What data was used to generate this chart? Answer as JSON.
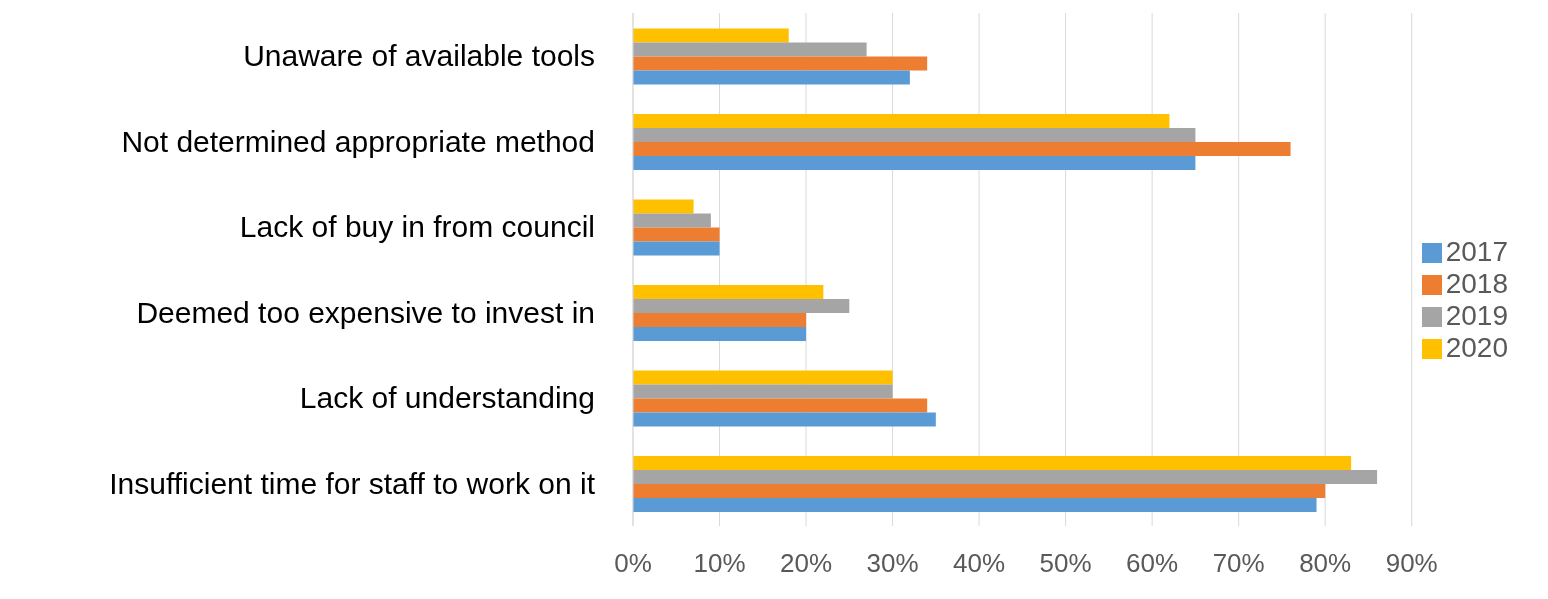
{
  "chart_data": {
    "type": "bar",
    "orientation": "horizontal",
    "categories": [
      "Unaware of available tools",
      "Not determined appropriate method",
      "Lack of buy in from council",
      "Deemed too expensive to invest in",
      "Lack of understanding",
      "Insufficient time for staff to work on it"
    ],
    "series": [
      {
        "name": "2020",
        "color": "#ffc000",
        "values": [
          18,
          62,
          7,
          22,
          30,
          83
        ]
      },
      {
        "name": "2019",
        "color": "#a5a5a5",
        "values": [
          27,
          65,
          9,
          25,
          30,
          86
        ]
      },
      {
        "name": "2018",
        "color": "#ed7d31",
        "values": [
          34,
          76,
          10,
          20,
          34,
          80
        ]
      },
      {
        "name": "2017",
        "color": "#5b9bd5",
        "values": [
          32,
          65,
          10,
          20,
          35,
          79
        ]
      }
    ],
    "xlim": [
      0,
      90
    ],
    "xticks": [
      {
        "value": 0,
        "label": "0%"
      },
      {
        "value": 10,
        "label": "10%"
      },
      {
        "value": 20,
        "label": "20%"
      },
      {
        "value": 30,
        "label": "30%"
      },
      {
        "value": 40,
        "label": "40%"
      },
      {
        "value": 50,
        "label": "50%"
      },
      {
        "value": 60,
        "label": "60%"
      },
      {
        "value": 70,
        "label": "70%"
      },
      {
        "value": 80,
        "label": "80%"
      },
      {
        "value": 90,
        "label": "90%"
      }
    ],
    "grid": "x",
    "legend": "right"
  }
}
